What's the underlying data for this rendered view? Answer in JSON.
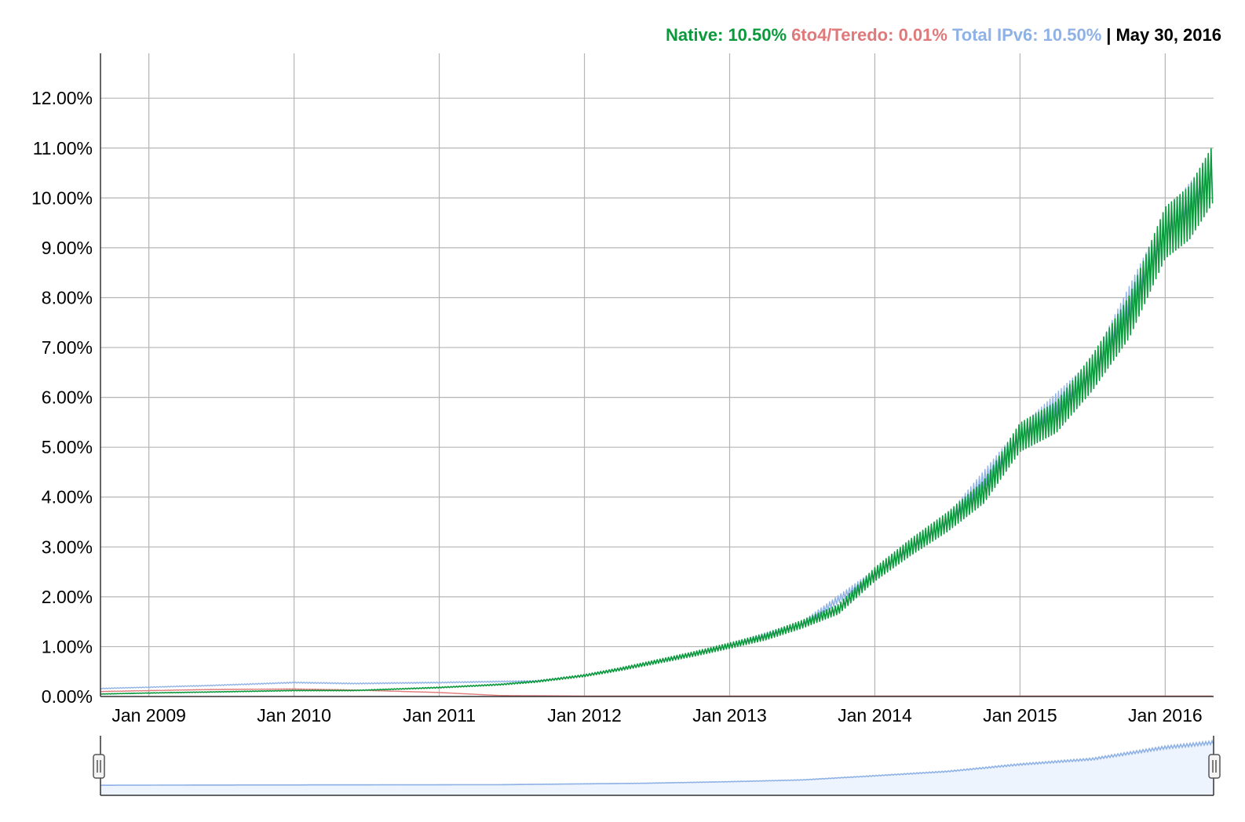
{
  "chart_data": {
    "type": "line",
    "legend": {
      "native_label": "Native: 10.50%",
      "teredo_label": "6to4/Teredo: 0.01%",
      "total_label": "Total IPv6: 10.50%",
      "separator": "|",
      "date_label": "May 30, 2016"
    },
    "colors": {
      "native": "#0a9a3c",
      "teredo": "#e07a7a",
      "total": "#8fb2e6",
      "grid": "#b5b5b5",
      "axis": "#333333"
    },
    "x_ticks": [
      "Jan 2009",
      "Jan 2010",
      "Jan 2011",
      "Jan 2012",
      "Jan 2013",
      "Jan 2014",
      "Jan 2015",
      "Jan 2016"
    ],
    "y_ticks": [
      "0.00%",
      "1.00%",
      "2.00%",
      "3.00%",
      "4.00%",
      "5.00%",
      "6.00%",
      "7.00%",
      "8.00%",
      "9.00%",
      "10.00%",
      "11.00%",
      "12.00%"
    ],
    "xlim": [
      "2008-09",
      "2016-05"
    ],
    "ylim": [
      0,
      12.9
    ],
    "grid": true,
    "legend_placement": "top-right",
    "series": [
      {
        "key": "native",
        "x": [
          "2008-09",
          "2009-01",
          "2009-06",
          "2010-01",
          "2010-06",
          "2011-01",
          "2011-06",
          "2011-09",
          "2012-01",
          "2012-04",
          "2012-07",
          "2012-10",
          "2013-01",
          "2013-04",
          "2013-07",
          "2013-10",
          "2014-01",
          "2014-04",
          "2014-07",
          "2014-10",
          "2015-01",
          "2015-04",
          "2015-07",
          "2015-10",
          "2016-01",
          "2016-03",
          "2016-05"
        ],
        "values": [
          0.05,
          0.07,
          0.09,
          0.12,
          0.12,
          0.18,
          0.24,
          0.3,
          0.42,
          0.55,
          0.7,
          0.85,
          1.02,
          1.2,
          1.45,
          1.75,
          2.45,
          3.0,
          3.5,
          4.1,
          5.2,
          5.6,
          6.5,
          7.6,
          9.3,
          9.7,
          10.5
        ]
      },
      {
        "key": "teredo",
        "x": [
          "2008-09",
          "2009-06",
          "2010-01",
          "2010-06",
          "2011-01",
          "2011-06",
          "2012-01",
          "2016-05"
        ],
        "values": [
          0.1,
          0.14,
          0.15,
          0.13,
          0.08,
          0.02,
          0.01,
          0.01
        ]
      },
      {
        "key": "total",
        "x": [
          "2008-09",
          "2009-06",
          "2010-01",
          "2010-06",
          "2011-01",
          "2011-06",
          "2011-09",
          "2012-01",
          "2012-07",
          "2013-01",
          "2013-07",
          "2014-01",
          "2014-07",
          "2015-01",
          "2015-07",
          "2016-01",
          "2016-05"
        ],
        "values": [
          0.16,
          0.22,
          0.28,
          0.26,
          0.28,
          0.3,
          0.31,
          0.42,
          0.7,
          1.02,
          1.45,
          2.45,
          3.5,
          5.2,
          6.5,
          9.3,
          10.5
        ]
      }
    ],
    "navigator": {
      "x": [
        "2008-09",
        "2009-06",
        "2010-06",
        "2011-06",
        "2012-06",
        "2013-01",
        "2013-07",
        "2014-01",
        "2014-07",
        "2015-01",
        "2015-07",
        "2016-01",
        "2016-05"
      ],
      "values": [
        0.16,
        0.22,
        0.26,
        0.3,
        0.65,
        1.02,
        1.45,
        2.45,
        3.5,
        5.2,
        6.5,
        9.3,
        10.5
      ],
      "handle_glyph": "⏸"
    }
  }
}
